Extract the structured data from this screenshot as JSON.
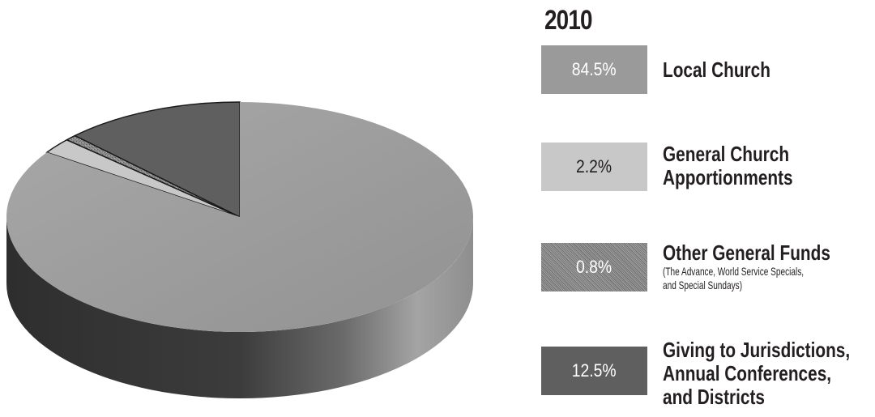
{
  "chart_data": {
    "type": "pie",
    "title": "2010",
    "slices": [
      {
        "label": "Local Church",
        "value": 84.5,
        "display": "84.5%",
        "color": "#9a9a9a",
        "box_text_color": "#ffffff"
      },
      {
        "label": "General Church Apportionments",
        "label_lines": [
          "General Church",
          "Apportionments"
        ],
        "value": 2.2,
        "display": "2.2%",
        "color": "#c8c8c8",
        "box_text_color": "#231f20"
      },
      {
        "label": "Other General Funds",
        "label_lines": [
          "Other General Funds"
        ],
        "note_lines": [
          "(The Advance, World Service Specials,",
          "and Special Sundays)"
        ],
        "value": 0.8,
        "display": "0.8%",
        "color": "#8c8c8c",
        "pattern": "stipple",
        "box_text_color": "#ffffff"
      },
      {
        "label": "Giving to Jurisdictions, Annual Conferences, and Districts",
        "label_lines": [
          "Giving to Jurisdictions,",
          "Annual Conferences,",
          "and Districts"
        ],
        "value": 12.5,
        "display": "12.5%",
        "color": "#5f5f5f",
        "box_text_color": "#ffffff"
      }
    ],
    "style": "3d-exploded-pie",
    "legend_position": "right"
  }
}
